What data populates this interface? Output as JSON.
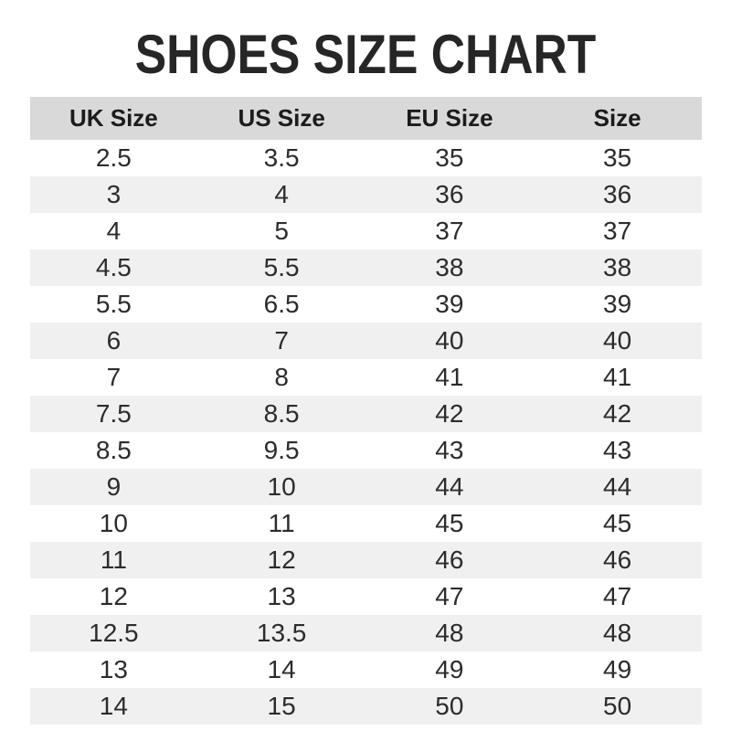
{
  "page": {
    "title": "SHOES SIZE CHART"
  },
  "colors": {
    "header_bg": "#d9d9d9",
    "row_alt_bg": "#f0f0f0",
    "title_color": "#262626",
    "text_color": "#2c2c2c",
    "page_bg": "#ffffff"
  },
  "chart_data": {
    "type": "table",
    "title": "SHOES SIZE CHART",
    "columns": [
      "UK Size",
      "US Size",
      "EU Size",
      "Size"
    ],
    "rows": [
      [
        "2.5",
        "3.5",
        "35",
        "35"
      ],
      [
        "3",
        "4",
        "36",
        "36"
      ],
      [
        "4",
        "5",
        "37",
        "37"
      ],
      [
        "4.5",
        "5.5",
        "38",
        "38"
      ],
      [
        "5.5",
        "6.5",
        "39",
        "39"
      ],
      [
        "6",
        "7",
        "40",
        "40"
      ],
      [
        "7",
        "8",
        "41",
        "41"
      ],
      [
        "7.5",
        "8.5",
        "42",
        "42"
      ],
      [
        "8.5",
        "9.5",
        "43",
        "43"
      ],
      [
        "9",
        "10",
        "44",
        "44"
      ],
      [
        "10",
        "11",
        "45",
        "45"
      ],
      [
        "11",
        "12",
        "46",
        "46"
      ],
      [
        "12",
        "13",
        "47",
        "47"
      ],
      [
        "12.5",
        "13.5",
        "48",
        "48"
      ],
      [
        "13",
        "14",
        "49",
        "49"
      ],
      [
        "14",
        "15",
        "50",
        "50"
      ]
    ],
    "layout": {
      "header_background": "#d9d9d9",
      "alternating_row_background": "#f0f0f0",
      "text_alignment": "center",
      "grid": "off"
    }
  }
}
